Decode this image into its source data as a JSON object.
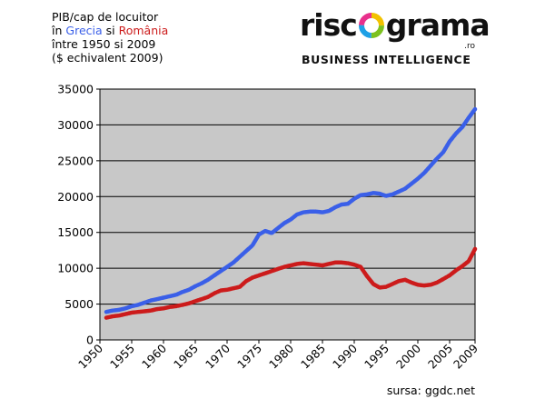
{
  "header": {
    "line1": "PIB/cap de locuitor",
    "line2_prefix": "în",
    "line2_greece": "Grecia",
    "line2_and": "si",
    "line2_romania": "România",
    "line3": "între 1950 si 2009",
    "line4": "($ echivalent 2009)"
  },
  "logo": {
    "word_left": "risc",
    "word_right": "grama",
    "suffix": ".ro",
    "tagline": "BUSINESS INTELLIGENCE"
  },
  "source": "sursa: ggdc.net",
  "colors": {
    "greece": "#3a5fe8",
    "romania": "#cc1b1b",
    "plot_bg": "#c8c8c8"
  },
  "chart_data": {
    "type": "line",
    "xlim": [
      1950,
      2009
    ],
    "ylim": [
      0,
      35000
    ],
    "yticks": [
      0,
      5000,
      10000,
      15000,
      20000,
      25000,
      30000,
      35000
    ],
    "xticks": [
      1950,
      1955,
      1960,
      1965,
      1970,
      1975,
      1980,
      1985,
      1990,
      1995,
      2000,
      2005,
      2009
    ],
    "grid": true,
    "legend": "none",
    "x": [
      1951,
      1952,
      1953,
      1954,
      1955,
      1956,
      1957,
      1958,
      1959,
      1960,
      1961,
      1962,
      1963,
      1964,
      1965,
      1966,
      1967,
      1968,
      1969,
      1970,
      1971,
      1972,
      1973,
      1974,
      1975,
      1976,
      1977,
      1978,
      1979,
      1980,
      1981,
      1982,
      1983,
      1984,
      1985,
      1986,
      1987,
      1988,
      1989,
      1990,
      1991,
      1992,
      1993,
      1994,
      1995,
      1996,
      1997,
      1998,
      1999,
      2000,
      2001,
      2002,
      2003,
      2004,
      2005,
      2006,
      2007,
      2008,
      2009
    ],
    "series": [
      {
        "name": "Grecia",
        "color": "#3a5fe8",
        "values": [
          3900,
          4100,
          4200,
          4400,
          4700,
          4900,
          5200,
          5500,
          5700,
          5900,
          6100,
          6300,
          6700,
          7000,
          7500,
          7900,
          8400,
          9000,
          9600,
          10200,
          10800,
          11600,
          12400,
          13200,
          14700,
          15200,
          14900,
          15600,
          16300,
          16800,
          17500,
          17800,
          17900,
          17900,
          17800,
          18000,
          18500,
          18900,
          19000,
          19700,
          20200,
          20300,
          20500,
          20400,
          20100,
          20300,
          20700,
          21100,
          21800,
          22500,
          23300,
          24300,
          25300,
          26200,
          27700,
          28800,
          29700,
          31000,
          32200
        ]
      },
      {
        "name": "România",
        "color": "#cc1b1b",
        "values": [
          3100,
          3300,
          3400,
          3600,
          3800,
          3900,
          4000,
          4100,
          4300,
          4400,
          4600,
          4700,
          4900,
          5100,
          5400,
          5700,
          6000,
          6500,
          6900,
          7000,
          7200,
          7400,
          8200,
          8700,
          9000,
          9300,
          9600,
          9900,
          10200,
          10400,
          10600,
          10700,
          10600,
          10500,
          10400,
          10600,
          10800,
          10800,
          10700,
          10500,
          10200,
          8900,
          7800,
          7300,
          7400,
          7800,
          8200,
          8400,
          8000,
          7700,
          7600,
          7700,
          8000,
          8500,
          9000,
          9700,
          10300,
          11000,
          12700
        ]
      }
    ]
  }
}
